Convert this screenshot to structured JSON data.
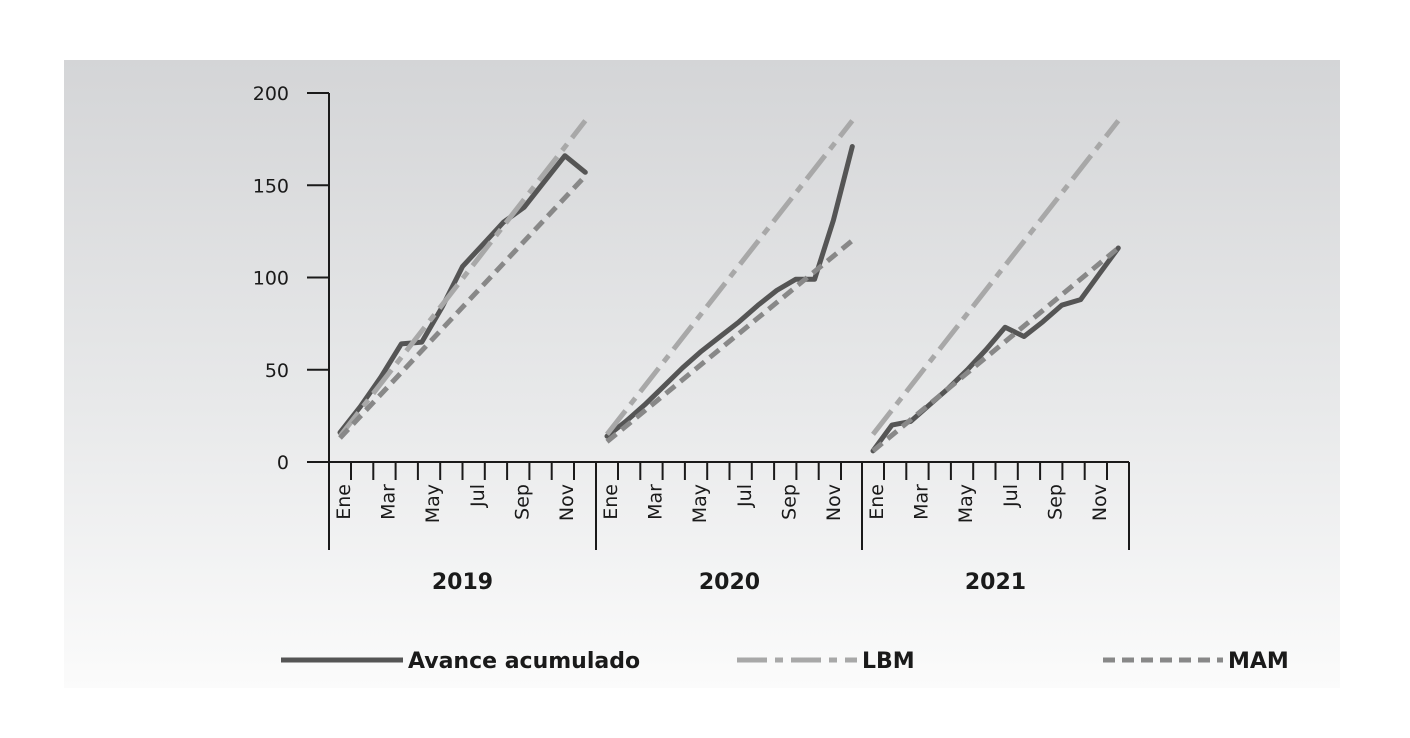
{
  "chart_data": {
    "type": "line",
    "groups": [
      "2019",
      "2020",
      "2021"
    ],
    "month_labels": [
      "Ene",
      "Mar",
      "May",
      "Jul",
      "Sep",
      "Nov"
    ],
    "months_per_group": 12,
    "y_ticks": [
      "0",
      "50",
      "100",
      "150",
      "200"
    ],
    "ylim": [
      0,
      200
    ],
    "legend_position": "bottom",
    "series": [
      {
        "name": "Avance acumulado",
        "style": "solid",
        "color": "#555555",
        "groups": [
          [
            16,
            30,
            46,
            64,
            65,
            84,
            106,
            118,
            130,
            138,
            152,
            166,
            157
          ],
          [
            14,
            22,
            31,
            41,
            51,
            60,
            68,
            76,
            85,
            93,
            99,
            99,
            131,
            171
          ],
          [
            6,
            20,
            22,
            31,
            40,
            50,
            61,
            73,
            68,
            76,
            85,
            88,
            102,
            116
          ]
        ]
      },
      {
        "name": "LBM",
        "style": "dashdot",
        "color": "#a8a8a8",
        "groups": [
          [
            14,
            185
          ],
          [
            15,
            185
          ],
          [
            15,
            185
          ]
        ]
      },
      {
        "name": "MAM",
        "style": "dotted",
        "color": "#888888",
        "groups": [
          [
            13,
            155
          ],
          [
            11,
            120
          ],
          [
            6,
            116
          ]
        ]
      }
    ],
    "legend": [
      {
        "label": "Avance acumulado"
      },
      {
        "label": "LBM"
      },
      {
        "label": "MAM"
      }
    ]
  }
}
